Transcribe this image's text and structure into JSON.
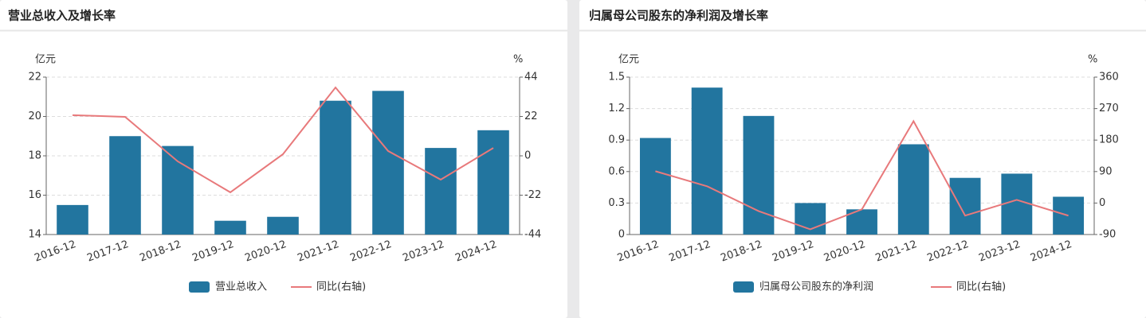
{
  "chart_data": [
    {
      "type": "bar-line",
      "title": "营业总收入及增长率",
      "y_unit": "亿元",
      "y2_unit": "%",
      "categories": [
        "2016-12",
        "2017-12",
        "2018-12",
        "2019-12",
        "2020-12",
        "2021-12",
        "2022-12",
        "2023-12",
        "2024-12"
      ],
      "series": [
        {
          "name": "营业总收入",
          "type": "bar",
          "color": "#22759f",
          "values": [
            15.5,
            19.0,
            18.5,
            14.7,
            14.9,
            20.8,
            21.3,
            18.4,
            19.3
          ]
        },
        {
          "name": "同比(右轴)",
          "type": "line",
          "axis": "y2",
          "color": "#e8797b",
          "values": [
            22.7,
            21.8,
            -3.1,
            -20.4,
            0.9,
            38.2,
            2.7,
            -13.3,
            4.4
          ]
        }
      ],
      "ylim": [
        14,
        22
      ],
      "yticks": [
        14,
        16,
        18,
        20,
        22
      ],
      "y2lim": [
        -44,
        44
      ],
      "y2ticks": [
        -44,
        -22,
        0,
        22,
        44
      ],
      "grid": true,
      "legend": "bottom"
    },
    {
      "type": "bar-line",
      "title": "归属母公司股东的净利润及增长率",
      "y_unit": "亿元",
      "y2_unit": "%",
      "categories": [
        "2016-12",
        "2017-12",
        "2018-12",
        "2019-12",
        "2020-12",
        "2021-12",
        "2022-12",
        "2023-12",
        "2024-12"
      ],
      "series": [
        {
          "name": "归属母公司股东的净利润",
          "type": "bar",
          "color": "#22759f",
          "values": [
            0.92,
            1.4,
            1.13,
            0.3,
            0.24,
            0.86,
            0.54,
            0.58,
            0.36
          ]
        },
        {
          "name": "同比(右轴)",
          "type": "line",
          "axis": "y2",
          "color": "#e8797b",
          "values": [
            91,
            48,
            -23,
            -75,
            -18,
            234,
            -36,
            9,
            -36
          ]
        }
      ],
      "ylim": [
        0,
        1.5
      ],
      "yticks": [
        0,
        0.3,
        0.6,
        0.9,
        1.2,
        1.5
      ],
      "y2lim": [
        -90,
        360
      ],
      "y2ticks": [
        -90,
        0,
        90,
        180,
        270,
        360
      ],
      "grid": true,
      "legend": "bottom"
    }
  ]
}
